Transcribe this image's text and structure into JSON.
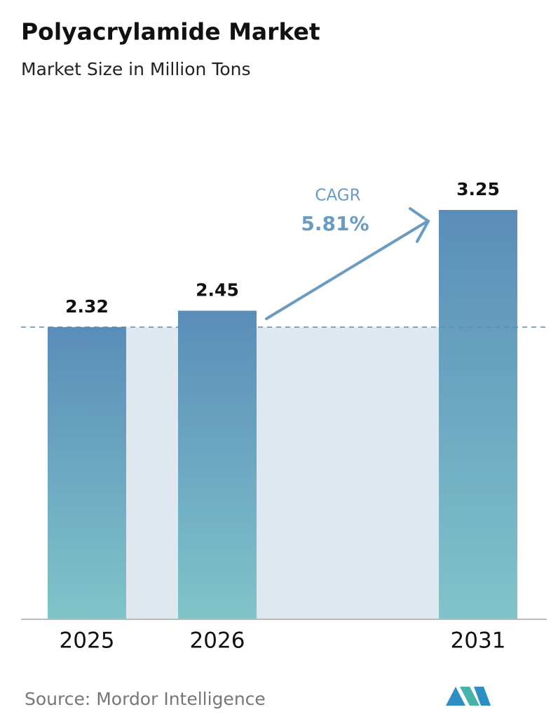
{
  "chart_data": {
    "type": "bar",
    "title": "Polyacrylamide Market",
    "subtitle": "Market Size in Million Tons",
    "categories": [
      "2025",
      "2026",
      "2031"
    ],
    "values": [
      2.32,
      2.45,
      3.25
    ],
    "cagr_label": "CAGR",
    "cagr_value": "5.81%",
    "source": "Source:  Mordor Intelligence",
    "colors": [
      "#5a8db9",
      "#80c4c9"
    ]
  }
}
